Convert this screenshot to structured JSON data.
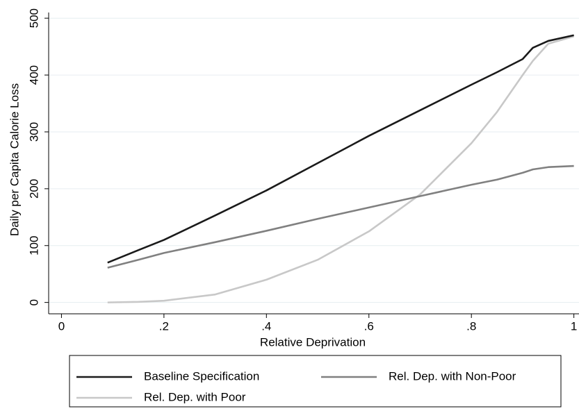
{
  "chart_data": {
    "type": "line",
    "x_label": "Relative Deprivation",
    "y_label": "Daily per Capita Calorie Loss",
    "x": [
      0.09,
      0.15,
      0.2,
      0.3,
      0.4,
      0.5,
      0.6,
      0.7,
      0.8,
      0.85,
      0.9,
      0.92,
      0.95,
      1.0
    ],
    "series": [
      {
        "name": "Baseline Specification",
        "color": "#1a1a1a",
        "values": [
          70,
          92,
          110,
          153,
          197,
          245,
          293,
          338,
          383,
          405,
          428,
          448,
          460,
          470
        ]
      },
      {
        "name": "Rel. Dep. with Non-Poor",
        "color": "#808080",
        "values": [
          61,
          75,
          87,
          106,
          126,
          147,
          167,
          187,
          207,
          216,
          228,
          234,
          238,
          240
        ]
      },
      {
        "name": "Rel. Dep. with Poor",
        "color": "#c8c8c8",
        "values": [
          0,
          1,
          3,
          14,
          40,
          75,
          125,
          190,
          280,
          335,
          400,
          425,
          455,
          468
        ]
      }
    ],
    "xlim": [
      -0.025,
      1.01
    ],
    "ylim": [
      -20,
      510
    ],
    "xticks": [
      0,
      {
        "value": 0.2,
        "label": ".2"
      },
      {
        "value": 0.4,
        "label": ".4"
      },
      {
        "value": 0.6,
        "label": ".6"
      },
      {
        "value": 0.8,
        "label": ".8"
      },
      1
    ],
    "yticks": [
      0,
      100,
      200,
      300,
      400,
      500
    ],
    "grid": true,
    "legend": "bottom"
  }
}
